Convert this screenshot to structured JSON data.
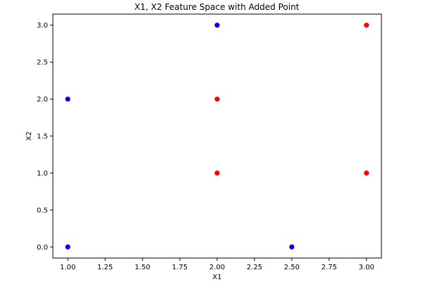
{
  "chart_data": {
    "type": "scatter",
    "title": "X1, X2 Feature Space with Added Point",
    "xlabel": "X1",
    "ylabel": "X2",
    "xlim": [
      0.9,
      3.1
    ],
    "ylim": [
      -0.15,
      3.15
    ],
    "xticks": [
      1.0,
      1.25,
      1.5,
      1.75,
      2.0,
      2.25,
      2.5,
      2.75,
      3.0
    ],
    "xtick_labels": [
      "1.00",
      "1.25",
      "1.50",
      "1.75",
      "2.00",
      "2.25",
      "2.50",
      "2.75",
      "3.00"
    ],
    "yticks": [
      0.0,
      0.5,
      1.0,
      1.5,
      2.0,
      2.5,
      3.0
    ],
    "ytick_labels": [
      "0.0",
      "0.5",
      "1.0",
      "1.5",
      "2.0",
      "2.5",
      "3.0"
    ],
    "grid": false,
    "legend": false,
    "series": [
      {
        "color": "#0000ff",
        "x": [
          1.0,
          1.0,
          2.0,
          2.5
        ],
        "y": [
          2.0,
          0.0,
          3.0,
          0.0
        ]
      },
      {
        "color": "#ff0000",
        "x": [
          2.0,
          2.0,
          3.0,
          3.0
        ],
        "y": [
          2.0,
          1.0,
          3.0,
          1.0
        ]
      }
    ]
  }
}
